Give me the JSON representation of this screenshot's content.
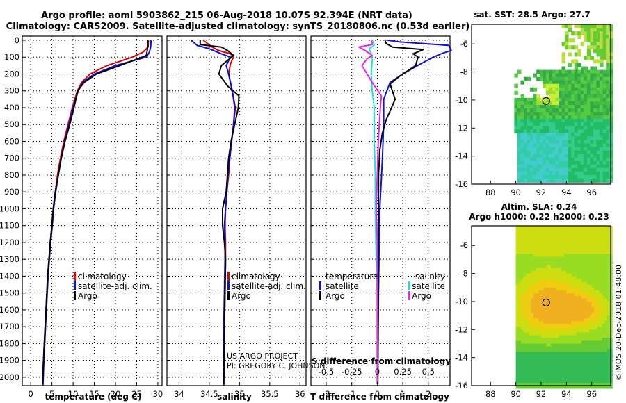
{
  "header": {
    "line1": "Argo profile: aoml 5903862_215 06-Aug-2018 10.07S 92.394E (NRT data)",
    "line2": "Climatology: CARS2009. Satellite-adjusted climatology: synTS_20180806.nc (0.53d earlier)"
  },
  "colors": {
    "climatology": "#dd0000",
    "satellite": "#1010dd",
    "argo": "#000000",
    "sal_satellite": "#22dddd",
    "sal_argo": "#ee22ee"
  },
  "chart_data": [
    {
      "type": "line",
      "id": "temperature",
      "xlabel": "temperature (deg C)",
      "xlim": [
        -2,
        31
      ],
      "ylim": [
        0,
        2050
      ],
      "xticks": [
        0,
        5,
        10,
        15,
        20,
        25,
        30
      ],
      "yticks": [
        0,
        100,
        200,
        300,
        400,
        500,
        600,
        700,
        800,
        900,
        1000,
        1100,
        1200,
        1300,
        1400,
        1500,
        1600,
        1700,
        1800,
        1900,
        2000
      ],
      "legend": [
        "climatology",
        "satellite-adj. clim.",
        "Argo"
      ],
      "series": [
        {
          "name": "climatology",
          "color_key": "climatology",
          "points": [
            [
              27.8,
              0
            ],
            [
              27.7,
              40
            ],
            [
              26.5,
              70
            ],
            [
              24,
              100
            ],
            [
              18,
              150
            ],
            [
              14,
              200
            ],
            [
              12,
              250
            ],
            [
              11,
              300
            ],
            [
              9.8,
              400
            ],
            [
              8.8,
              500
            ],
            [
              7.8,
              600
            ],
            [
              7,
              700
            ],
            [
              6.3,
              800
            ],
            [
              5.8,
              900
            ],
            [
              5.3,
              1000
            ],
            [
              5,
              1100
            ],
            [
              4.6,
              1200
            ],
            [
              4.3,
              1300
            ],
            [
              4,
              1400
            ],
            [
              3.8,
              1500
            ],
            [
              3.6,
              1600
            ],
            [
              3.4,
              1700
            ],
            [
              3.2,
              1800
            ],
            [
              3,
              1900
            ],
            [
              2.8,
              2050
            ]
          ]
        },
        {
          "name": "satellite-adj. clim.",
          "color_key": "satellite",
          "points": [
            [
              28.4,
              0
            ],
            [
              28.3,
              40
            ],
            [
              28,
              70
            ],
            [
              27.3,
              100
            ],
            [
              20,
              150
            ],
            [
              15,
              200
            ],
            [
              12.3,
              250
            ],
            [
              11.2,
              300
            ],
            [
              10,
              400
            ],
            [
              9,
              500
            ],
            [
              8,
              600
            ],
            [
              7.2,
              700
            ],
            [
              6.5,
              800
            ],
            [
              5.9,
              900
            ],
            [
              5.4,
              1000
            ],
            [
              5.1,
              1100
            ],
            [
              4.7,
              1200
            ],
            [
              4.4,
              1300
            ],
            [
              4.1,
              1400
            ],
            [
              3.9,
              1500
            ],
            [
              3.7,
              1600
            ],
            [
              3.5,
              1700
            ],
            [
              3.3,
              1800
            ],
            [
              3.1,
              1900
            ],
            [
              2.9,
              2050
            ]
          ]
        },
        {
          "name": "Argo",
          "color_key": "argo",
          "points": [
            [
              27.6,
              0
            ],
            [
              27.6,
              35
            ],
            [
              27.5,
              60
            ],
            [
              27.3,
              90
            ],
            [
              21,
              150
            ],
            [
              15.5,
              200
            ],
            [
              12.6,
              250
            ],
            [
              11.1,
              300
            ],
            [
              10.2,
              400
            ],
            [
              9.2,
              500
            ],
            [
              8.1,
              600
            ],
            [
              7.2,
              700
            ],
            [
              6.5,
              800
            ],
            [
              5.8,
              900
            ],
            [
              5.3,
              1000
            ],
            [
              5,
              1100
            ],
            [
              4.6,
              1200
            ],
            [
              4.3,
              1300
            ],
            [
              4,
              1400
            ],
            [
              3.8,
              1500
            ],
            [
              3.6,
              1600
            ],
            [
              3.4,
              1700
            ],
            [
              3.2,
              1800
            ],
            [
              3,
              1900
            ],
            [
              2.8,
              2040
            ]
          ]
        }
      ]
    },
    {
      "type": "line",
      "id": "salinity",
      "xlabel": "salinity",
      "xlim": [
        33.8,
        36.1
      ],
      "ylim": [
        0,
        2050
      ],
      "xticks": [
        34,
        34.5,
        35,
        35.5,
        36
      ],
      "legend": [
        "climatology",
        "satellite-adj. clim.",
        "Argo"
      ],
      "series": [
        {
          "name": "climatology",
          "color_key": "climatology",
          "points": [
            [
              34.4,
              0
            ],
            [
              34.55,
              40
            ],
            [
              34.65,
              60
            ],
            [
              34.85,
              80
            ],
            [
              34.9,
              100
            ],
            [
              34.85,
              140
            ],
            [
              34.82,
              200
            ],
            [
              34.88,
              300
            ],
            [
              34.92,
              400
            ],
            [
              34.9,
              500
            ],
            [
              34.87,
              600
            ],
            [
              34.84,
              700
            ],
            [
              34.82,
              800
            ],
            [
              34.79,
              900
            ],
            [
              34.77,
              1000
            ],
            [
              34.76,
              1100
            ],
            [
              34.77,
              1200
            ],
            [
              34.77,
              1300
            ],
            [
              34.76,
              1500
            ],
            [
              34.75,
              1700
            ],
            [
              34.74,
              2050
            ]
          ]
        },
        {
          "name": "satellite-adj. clim.",
          "color_key": "satellite",
          "points": [
            [
              34.2,
              0
            ],
            [
              34.3,
              30
            ],
            [
              34.5,
              50
            ],
            [
              34.7,
              80
            ],
            [
              34.85,
              100
            ],
            [
              34.78,
              150
            ],
            [
              34.82,
              200
            ],
            [
              34.88,
              300
            ],
            [
              34.93,
              400
            ],
            [
              34.9,
              500
            ],
            [
              34.87,
              600
            ],
            [
              34.84,
              700
            ],
            [
              34.81,
              800
            ],
            [
              34.79,
              900
            ],
            [
              34.77,
              1000
            ],
            [
              34.75,
              1100
            ],
            [
              34.76,
              1200
            ],
            [
              34.76,
              1300
            ],
            [
              34.75,
              1500
            ],
            [
              34.74,
              1700
            ],
            [
              34.74,
              2050
            ]
          ]
        },
        {
          "name": "Argo",
          "color_key": "argo",
          "points": [
            [
              34.35,
              0
            ],
            [
              34.35,
              25
            ],
            [
              34.7,
              40
            ],
            [
              34.8,
              60
            ],
            [
              34.9,
              90
            ],
            [
              34.7,
              150
            ],
            [
              34.66,
              200
            ],
            [
              34.8,
              270
            ],
            [
              34.99,
              330
            ],
            [
              34.98,
              400
            ],
            [
              34.92,
              500
            ],
            [
              34.86,
              600
            ],
            [
              34.82,
              700
            ],
            [
              34.8,
              800
            ],
            [
              34.78,
              900
            ],
            [
              34.72,
              1000
            ],
            [
              34.72,
              1100
            ],
            [
              34.75,
              1200
            ],
            [
              34.77,
              1300
            ],
            [
              34.76,
              1500
            ],
            [
              34.75,
              1700
            ],
            [
              34.74,
              2040
            ]
          ]
        }
      ]
    },
    {
      "type": "line",
      "id": "difference",
      "xlabel": "T difference from climatology",
      "top_xlabel": "S difference from climatology",
      "xlim": [
        -2.6,
        2.85
      ],
      "ylim": [
        0,
        2050
      ],
      "xticks": [
        -2,
        -1,
        0,
        1,
        2
      ],
      "top_xticks": [
        "-0.5",
        "-0.25",
        "0",
        "0.25",
        "0.5"
      ],
      "top_xtick_values": [
        -0.5,
        -0.25,
        0,
        0.25,
        0.5
      ],
      "s_scale": 4,
      "legend_left_title": "temperature",
      "legend_right_title": "salinity",
      "legend_left": [
        "satellite",
        "Argo"
      ],
      "legend_right": [
        "satellite",
        "Argo"
      ],
      "series": [
        {
          "name": "T satellite",
          "color_key": "satellite",
          "points": [
            [
              0.4,
              0
            ],
            [
              0.9,
              10
            ],
            [
              2.8,
              30
            ],
            [
              2.9,
              60
            ],
            [
              2.5,
              80
            ],
            [
              2.2,
              100
            ],
            [
              1.7,
              140
            ],
            [
              1,
              200
            ],
            [
              0.5,
              250
            ],
            [
              0.25,
              350
            ],
            [
              0.25,
              500
            ],
            [
              0.2,
              700
            ],
            [
              0.1,
              1000
            ],
            [
              0.05,
              1500
            ],
            [
              0.02,
              2040
            ]
          ]
        },
        {
          "name": "T Argo",
          "color_key": "argo",
          "points": [
            [
              0.3,
              0
            ],
            [
              0.35,
              20
            ],
            [
              0.6,
              40
            ],
            [
              1.8,
              55
            ],
            [
              1.4,
              80
            ],
            [
              1.6,
              100
            ],
            [
              1.5,
              150
            ],
            [
              0.9,
              210
            ],
            [
              0.5,
              260
            ],
            [
              0.7,
              350
            ],
            [
              0.5,
              420
            ],
            [
              0.35,
              470
            ],
            [
              0.2,
              550
            ],
            [
              0.1,
              650
            ],
            [
              0.05,
              800
            ],
            [
              0.05,
              1000
            ],
            [
              0.03,
              1500
            ],
            [
              0.02,
              2040
            ]
          ]
        },
        {
          "name": "S satellite",
          "color_key": "sal_satellite",
          "points": [
            [
              -0.05,
              0
            ],
            [
              -0.03,
              30
            ],
            [
              -0.08,
              50
            ],
            [
              -0.06,
              80
            ],
            [
              -0.05,
              120
            ],
            [
              -0.06,
              200
            ],
            [
              -0.05,
              300
            ],
            [
              -0.03,
              400
            ],
            [
              -0.03,
              600
            ],
            [
              -0.02,
              800
            ],
            [
              -0.02,
              1000
            ],
            [
              -0.01,
              1300
            ],
            [
              0,
              1500
            ],
            [
              0,
              2040
            ]
          ]
        },
        {
          "name": "S Argo",
          "color_key": "sal_argo",
          "points": [
            [
              -0.06,
              0
            ],
            [
              -0.05,
              25
            ],
            [
              -0.18,
              40
            ],
            [
              -0.12,
              60
            ],
            [
              -0.05,
              90
            ],
            [
              -0.1,
              110
            ],
            [
              -0.15,
              150
            ],
            [
              -0.05,
              250
            ],
            [
              0.04,
              330
            ],
            [
              0.03,
              400
            ],
            [
              0.02,
              500
            ],
            [
              0.01,
              600
            ],
            [
              0,
              800
            ],
            [
              -0.01,
              1000
            ],
            [
              0,
              1200
            ],
            [
              0,
              1500
            ],
            [
              0,
              2040
            ]
          ]
        }
      ]
    },
    {
      "type": "heatmap",
      "id": "sst-map",
      "title": "sat. SST: 28.5 Argo: 27.7",
      "xlim": [
        86.5,
        97.5
      ],
      "ylim": [
        -16,
        -4.6
      ],
      "xticks": [
        88,
        90,
        92,
        94,
        96
      ],
      "yticks": [
        -6,
        -8,
        -10,
        -12,
        -14,
        -16
      ],
      "marker": [
        92.4,
        -10.07
      ]
    },
    {
      "type": "heatmap",
      "id": "sla-map",
      "title_line1": "Altim. SLA: 0.24",
      "title_line2": "Argo h1000: 0.22 h2000: 0.23",
      "xlim": [
        86.5,
        97.5
      ],
      "ylim": [
        -16,
        -4.6
      ],
      "xticks": [
        88,
        90,
        92,
        94,
        96
      ],
      "yticks": [
        -6,
        -8,
        -10,
        -12,
        -14,
        -16
      ],
      "marker": [
        92.4,
        -10.07
      ]
    }
  ],
  "credits": {
    "project": "US ARGO PROJECT",
    "pi": "PI: GREGORY C. JOHNSON",
    "stamp": "©IMOS 20-Dec-2018 01:48:00"
  }
}
